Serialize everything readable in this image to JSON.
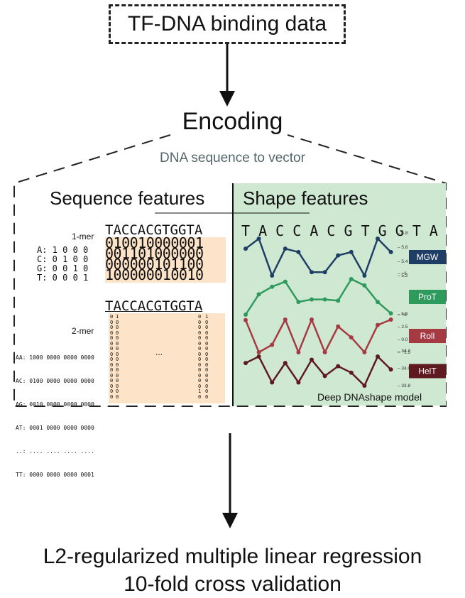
{
  "top_box": {
    "label": "TF-DNA binding data"
  },
  "encoding": {
    "title": "Encoding",
    "subtitle": "DNA sequence to vector"
  },
  "sequence_features": {
    "title": "Sequence features",
    "one_mer": {
      "label": "1-mer",
      "sequence": "TACCACGTGGTA",
      "rows": [
        "A: 1 0 0 0",
        "C: 0 1 0 0",
        "G: 0 0 1 0",
        "T: 0 0 0 1"
      ],
      "vectors": [
        "010010000001",
        "001101000000",
        "000000101100",
        "100000010010"
      ]
    },
    "two_mer": {
      "label": "2-mer",
      "sequence": "TACCACGTGGTA",
      "rows": [
        "AA: 1000 0000 0000 0000",
        "AC: 0100 0000 0000 0000",
        "AG: 0010 0000 0000 0000",
        "AT: 0001 0000 0000 0000",
        "..: .... .... .... ....",
        "TT: 0000 0000 0000 0001"
      ],
      "ellipsis": "...",
      "col1": "0000000000000000",
      "col2": "1000000000000000",
      "col3": "0000000000000010",
      "col4": "1000000000000000"
    }
  },
  "shape_features": {
    "title": "Shape features",
    "sequence": "T A C C A C G T G G T A",
    "model_label": "Deep DNAshape model",
    "tracks": [
      {
        "name": "MGW",
        "color": "#1f3e66",
        "ticks": [
          "5.8",
          "5.6",
          "5.4",
          "5.2"
        ],
        "values": [
          5.6,
          5.75,
          5.2,
          5.6,
          5.55,
          5.25,
          5.25,
          5.5,
          5.55,
          5.2,
          5.75,
          5.55
        ]
      },
      {
        "name": "ProT",
        "color": "#2e9a5c",
        "ticks": [
          "−6",
          "−8"
        ],
        "values": [
          -8.8,
          -7.2,
          -6.6,
          -6.2,
          -7.8,
          -7.6,
          -7.6,
          -7.7,
          -6.0,
          -6.5,
          -7.8,
          -8.7
        ]
      },
      {
        "name": "Roll",
        "color": "#a63a43",
        "ticks": [
          "5.0",
          "2.5",
          "0.0",
          "−2.5"
        ],
        "values": [
          4.5,
          -2.0,
          -0.5,
          4.6,
          -2.0,
          4.6,
          -2.0,
          3.2,
          1.0,
          -2.0,
          3.5,
          4.6
        ]
      },
      {
        "name": "HelT",
        "color": "#5e1a1f",
        "ticks": [
          "34.2",
          "34.0",
          "33.8"
        ],
        "values": [
          34.05,
          34.15,
          33.75,
          34.05,
          33.75,
          34.1,
          33.85,
          34.0,
          33.9,
          33.7,
          34.15,
          33.95
        ]
      }
    ]
  },
  "bottom": {
    "line1": "L2-regularized multiple linear regression",
    "line2": "10-fold cross validation"
  }
}
